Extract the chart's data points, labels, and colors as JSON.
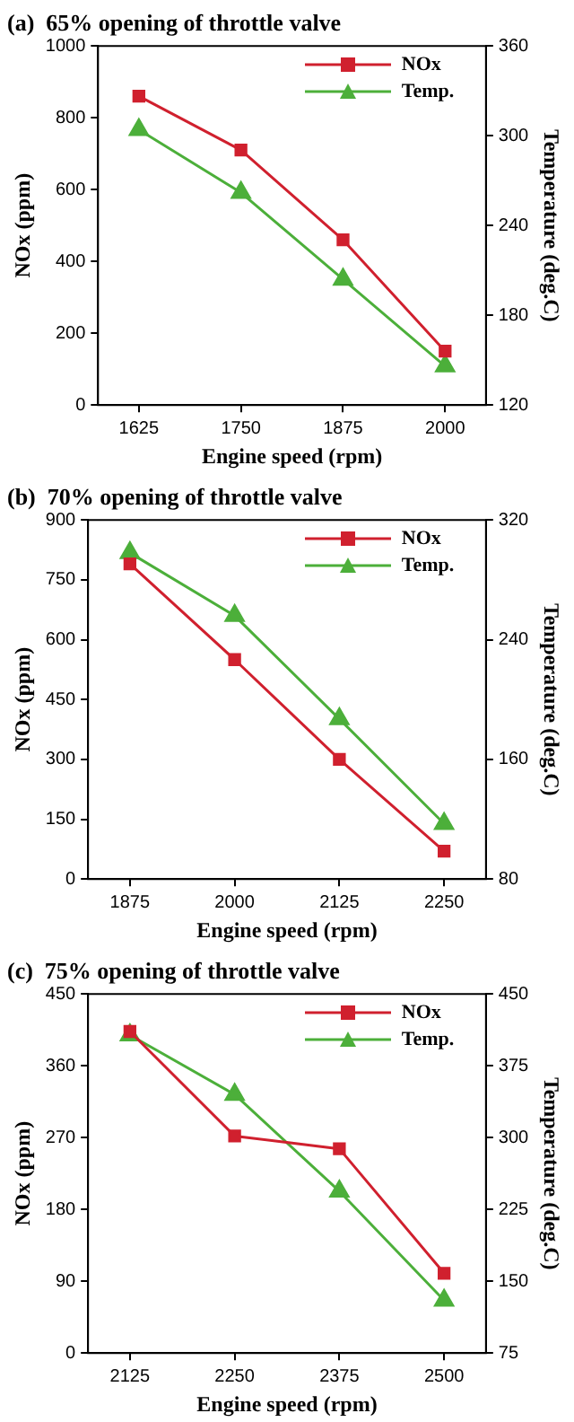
{
  "chart_data": [
    {
      "type": "line",
      "title": "(a)  65% opening of throttle valve",
      "xlabel": "Engine speed (rpm)",
      "ylabel": "NOx (ppm)",
      "y2label": "Temperature (deg.C)",
      "x": [
        1625,
        1750,
        1875,
        2000
      ],
      "xlim": [
        1575,
        2050
      ],
      "xticks": [
        1625,
        1750,
        1875,
        2000
      ],
      "ylim": [
        0,
        1000
      ],
      "yticks": [
        0,
        200,
        400,
        600,
        800,
        1000
      ],
      "y2lim": [
        120,
        360
      ],
      "y2ticks": [
        120,
        180,
        240,
        300,
        360
      ],
      "legend": "top right",
      "grid": false,
      "line_style": "solid",
      "series": [
        {
          "name": "NOx",
          "color": "#d0202e",
          "marker": "square",
          "values": [
            860,
            710,
            460,
            150
          ]
        },
        {
          "name": "Temp.",
          "color": "#4caf3a",
          "marker": "triangle",
          "axis": "y2",
          "values": [
            304,
            262,
            204,
            146
          ]
        }
      ]
    },
    {
      "type": "line",
      "title": "(b)  70% opening of throttle valve",
      "xlabel": "Engine speed (rpm)",
      "ylabel": "NOx (ppm)",
      "y2label": "Temperature (deg.C)",
      "x": [
        1875,
        2000,
        2125,
        2250
      ],
      "xlim": [
        1825,
        2300
      ],
      "xticks": [
        1875,
        2000,
        2125,
        2250
      ],
      "ylim": [
        0,
        900
      ],
      "yticks": [
        0,
        150,
        300,
        450,
        600,
        750,
        900
      ],
      "y2lim": [
        80,
        320
      ],
      "y2ticks": [
        80,
        160,
        240,
        320
      ],
      "legend": "top right",
      "grid": false,
      "line_style": "solid",
      "series": [
        {
          "name": "NOx",
          "color": "#d0202e",
          "marker": "square",
          "values": [
            790,
            550,
            300,
            70
          ]
        },
        {
          "name": "Temp.",
          "color": "#4caf3a",
          "marker": "triangle",
          "axis": "y2",
          "values": [
            298,
            256,
            187,
            117
          ]
        }
      ]
    },
    {
      "type": "line",
      "title": "(c)  75% opening of throttle valve",
      "xlabel": "Engine speed (rpm)",
      "ylabel": "NOx (ppm)",
      "y2label": "Temperature (deg.C)",
      "x": [
        2125,
        2250,
        2375,
        2500
      ],
      "xlim": [
        2075,
        2550
      ],
      "xticks": [
        2125,
        2250,
        2375,
        2500
      ],
      "ylim": [
        0,
        450
      ],
      "yticks": [
        0,
        90,
        180,
        270,
        360,
        450
      ],
      "y2lim": [
        75,
        450
      ],
      "y2ticks": [
        75,
        150,
        225,
        300,
        375,
        450
      ],
      "legend": "top right",
      "grid": false,
      "line_style": "solid",
      "series": [
        {
          "name": "NOx",
          "color": "#d0202e",
          "marker": "square",
          "values": [
            403,
            272,
            256,
            100
          ]
        },
        {
          "name": "Temp.",
          "color": "#4caf3a",
          "marker": "triangle",
          "axis": "y2",
          "values": [
            407,
            345,
            244,
            130
          ]
        }
      ]
    }
  ]
}
